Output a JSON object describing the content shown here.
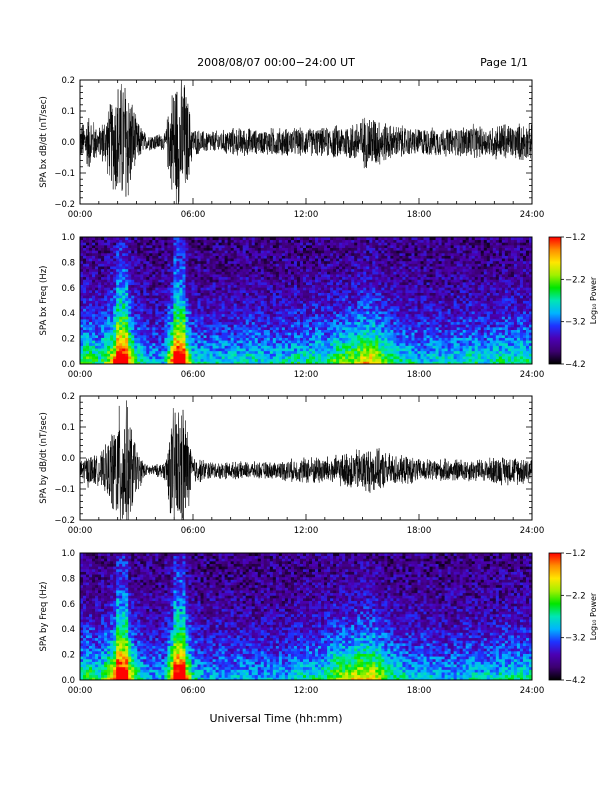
{
  "header": {
    "title": "2008/08/07   00:00−24:00 UT",
    "page_label": "Page 1/1"
  },
  "footer": {
    "xlabel": "Universal Time (hh:mm)"
  },
  "chart_data": [
    {
      "type": "line",
      "ylabel": "SPA bx dB/dt (nT/sec)",
      "xlim": [
        0,
        24
      ],
      "ylim": [
        -0.2,
        0.2
      ],
      "x_tick_labels": [
        "00:00",
        "06:00",
        "12:00",
        "18:00",
        "24:00"
      ],
      "y_tick_labels": [
        "0.2",
        "0.1",
        "0.0",
        "−0.1",
        "−0.2"
      ],
      "y_ticks": [
        0.2,
        0.1,
        0.0,
        -0.1,
        -0.2
      ],
      "series": [
        {
          "x": [
            0,
            0.5,
            1,
            1.5,
            2,
            2.5,
            3,
            3.5,
            4,
            4.5,
            5,
            5.5,
            6,
            6.5,
            7,
            7.5,
            8,
            8.5,
            9,
            9.5,
            10,
            10.5,
            11,
            11.5,
            12,
            12.5,
            13,
            13.5,
            14,
            14.5,
            15,
            15.5,
            16,
            16.5,
            17,
            17.5,
            18,
            18.5,
            19,
            19.5,
            20,
            20.5,
            21,
            21.5,
            22,
            22.5,
            23,
            23.5,
            24
          ],
          "amplitude": [
            0.06,
            0.1,
            0.05,
            0.12,
            0.22,
            0.24,
            0.08,
            0.03,
            0.03,
            0.03,
            0.24,
            0.24,
            0.05,
            0.04,
            0.04,
            0.04,
            0.05,
            0.05,
            0.05,
            0.04,
            0.05,
            0.05,
            0.05,
            0.05,
            0.05,
            0.05,
            0.05,
            0.06,
            0.06,
            0.07,
            0.09,
            0.1,
            0.08,
            0.06,
            0.06,
            0.05,
            0.05,
            0.05,
            0.05,
            0.05,
            0.05,
            0.06,
            0.06,
            0.05,
            0.06,
            0.07,
            0.06,
            0.07,
            0.06
          ],
          "offset": 0.0
        }
      ]
    },
    {
      "type": "heatmap",
      "ylabel": "SPA bx Freq (Hz)",
      "xlim": [
        0,
        24
      ],
      "ylim": [
        0,
        1.0
      ],
      "x_tick_labels": [
        "00:00",
        "06:00",
        "12:00",
        "18:00",
        "24:00"
      ],
      "y_tick_labels": [
        "1.0",
        "0.8",
        "0.6",
        "0.4",
        "0.2",
        "0.0"
      ],
      "y_ticks": [
        1.0,
        0.8,
        0.6,
        0.4,
        0.2,
        0.0
      ],
      "colorbar": {
        "label": "Log₁₀ Power",
        "range": [
          -4.2,
          -1.2
        ],
        "tick_labels": [
          "−1.2",
          "−2.2",
          "−3.2",
          "−4.2"
        ],
        "ticks": [
          -1.2,
          -2.2,
          -3.2,
          -4.2
        ],
        "colors": [
          "#000000",
          "#3c0070",
          "#4b00b4",
          "#1e32ff",
          "#00b4ff",
          "#00e6b4",
          "#00e600",
          "#a0f000",
          "#ffe600",
          "#ff8c00",
          "#ff0000"
        ]
      },
      "activity_profile": {
        "x": [
          0,
          0.5,
          1,
          1.5,
          2,
          2.5,
          3,
          3.5,
          4,
          4.5,
          5,
          5.5,
          6,
          6.5,
          7,
          7.5,
          8,
          8.5,
          9,
          9.5,
          10,
          10.5,
          11,
          11.5,
          12,
          12.5,
          13,
          13.5,
          14,
          14.5,
          15,
          15.5,
          16,
          16.5,
          17,
          17.5,
          18,
          18.5,
          19,
          19.5,
          20,
          20.5,
          21,
          21.5,
          22,
          22.5,
          23,
          23.5,
          24
        ],
        "level": [
          0.45,
          0.55,
          0.4,
          0.6,
          0.95,
          0.9,
          0.45,
          0.3,
          0.3,
          0.3,
          0.95,
          0.9,
          0.4,
          0.35,
          0.35,
          0.35,
          0.35,
          0.35,
          0.4,
          0.35,
          0.35,
          0.35,
          0.35,
          0.4,
          0.4,
          0.45,
          0.4,
          0.5,
          0.55,
          0.6,
          0.7,
          0.75,
          0.6,
          0.45,
          0.4,
          0.4,
          0.35,
          0.35,
          0.35,
          0.35,
          0.35,
          0.4,
          0.4,
          0.35,
          0.4,
          0.45,
          0.4,
          0.45,
          0.4
        ]
      }
    },
    {
      "type": "line",
      "ylabel": "SPA by dB/dt (nT/sec)",
      "xlim": [
        0,
        24
      ],
      "ylim": [
        -0.2,
        0.2
      ],
      "x_tick_labels": [
        "00:00",
        "06:00",
        "12:00",
        "18:00",
        "24:00"
      ],
      "y_tick_labels": [
        "0.2",
        "0.1",
        "0.0",
        "−0.1",
        "−0.2"
      ],
      "y_ticks": [
        0.2,
        0.1,
        0.0,
        -0.1,
        -0.2
      ],
      "series": [
        {
          "x": [
            0,
            0.5,
            1,
            1.5,
            2,
            2.5,
            3,
            3.5,
            4,
            4.5,
            5,
            5.5,
            6,
            6.5,
            7,
            7.5,
            8,
            8.5,
            9,
            9.5,
            10,
            10.5,
            11,
            11.5,
            12,
            12.5,
            13,
            13.5,
            14,
            14.5,
            15,
            15.5,
            16,
            16.5,
            17,
            17.5,
            18,
            18.5,
            19,
            19.5,
            20,
            20.5,
            21,
            21.5,
            22,
            22.5,
            23,
            23.5,
            24
          ],
          "amplitude": [
            0.04,
            0.06,
            0.05,
            0.1,
            0.22,
            0.24,
            0.08,
            0.02,
            0.02,
            0.03,
            0.24,
            0.24,
            0.05,
            0.04,
            0.03,
            0.03,
            0.03,
            0.03,
            0.03,
            0.03,
            0.03,
            0.03,
            0.04,
            0.04,
            0.05,
            0.05,
            0.05,
            0.05,
            0.06,
            0.07,
            0.08,
            0.08,
            0.07,
            0.06,
            0.05,
            0.05,
            0.04,
            0.04,
            0.04,
            0.04,
            0.04,
            0.04,
            0.04,
            0.04,
            0.05,
            0.05,
            0.05,
            0.05,
            0.05
          ],
          "offset": -0.04
        }
      ]
    },
    {
      "type": "heatmap",
      "ylabel": "SPA by Freq (Hz)",
      "xlim": [
        0,
        24
      ],
      "ylim": [
        0,
        1.0
      ],
      "x_tick_labels": [
        "00:00",
        "06:00",
        "12:00",
        "18:00",
        "24:00"
      ],
      "y_tick_labels": [
        "1.0",
        "0.8",
        "0.6",
        "0.4",
        "0.2",
        "0.0"
      ],
      "y_ticks": [
        1.0,
        0.8,
        0.6,
        0.4,
        0.2,
        0.0
      ],
      "colorbar": {
        "label": "Log₁₀ Power",
        "range": [
          -4.2,
          -1.2
        ],
        "tick_labels": [
          "−1.2",
          "−2.2",
          "−3.2",
          "−4.2"
        ],
        "ticks": [
          -1.2,
          -2.2,
          -3.2,
          -4.2
        ],
        "colors": [
          "#000000",
          "#3c0070",
          "#4b00b4",
          "#1e32ff",
          "#00b4ff",
          "#00e6b4",
          "#00e600",
          "#a0f000",
          "#ffe600",
          "#ff8c00",
          "#ff0000"
        ]
      },
      "activity_profile": {
        "x": [
          0,
          0.5,
          1,
          1.5,
          2,
          2.5,
          3,
          3.5,
          4,
          4.5,
          5,
          5.5,
          6,
          6.5,
          7,
          7.5,
          8,
          8.5,
          9,
          9.5,
          10,
          10.5,
          11,
          11.5,
          12,
          12.5,
          13,
          13.5,
          14,
          14.5,
          15,
          15.5,
          16,
          16.5,
          17,
          17.5,
          18,
          18.5,
          19,
          19.5,
          20,
          20.5,
          21,
          21.5,
          22,
          22.5,
          23,
          23.5,
          24
        ],
        "level": [
          0.4,
          0.5,
          0.4,
          0.6,
          0.95,
          0.9,
          0.45,
          0.3,
          0.3,
          0.3,
          0.95,
          0.9,
          0.4,
          0.3,
          0.3,
          0.3,
          0.3,
          0.3,
          0.3,
          0.3,
          0.3,
          0.3,
          0.3,
          0.35,
          0.4,
          0.4,
          0.45,
          0.55,
          0.6,
          0.65,
          0.7,
          0.72,
          0.6,
          0.45,
          0.4,
          0.35,
          0.35,
          0.35,
          0.3,
          0.3,
          0.3,
          0.35,
          0.35,
          0.35,
          0.35,
          0.4,
          0.4,
          0.4,
          0.4
        ]
      }
    }
  ]
}
